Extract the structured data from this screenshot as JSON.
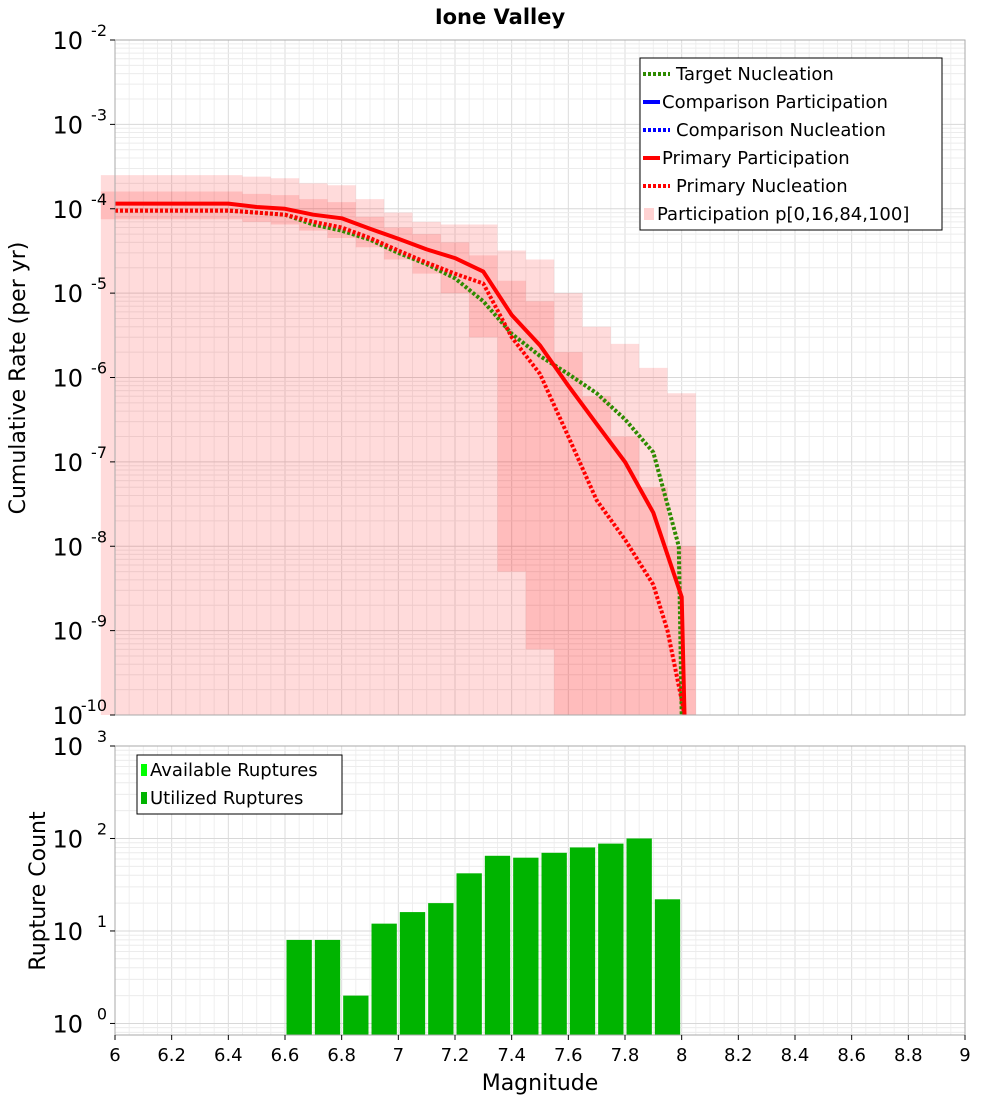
{
  "chart_data": [
    {
      "type": "line",
      "title": "Ione Valley",
      "ylabel": "Cumulative Rate (per yr)",
      "xlabel": "",
      "xlim": [
        6,
        9
      ],
      "ylim": [
        1e-10,
        0.01
      ],
      "yscale": "log",
      "ytick_exponents": [
        "-10",
        "-9",
        "-8",
        "-7",
        "-6",
        "-5",
        "-4",
        "-3",
        "-2"
      ],
      "ytick_base": "10",
      "legend_position": "top-right",
      "band": {
        "name": "Participation p[0,16,84,100]",
        "x": [
          6.0,
          6.1,
          6.2,
          6.3,
          6.4,
          6.5,
          6.6,
          6.7,
          6.8,
          6.9,
          7.0,
          7.1,
          7.2,
          7.3,
          7.4,
          7.5,
          7.6,
          7.7,
          7.8,
          7.9,
          8.0
        ],
        "p0": [
          1e-10,
          1e-10,
          1e-10,
          1e-10,
          1e-10,
          1e-10,
          1e-10,
          1e-10,
          1e-10,
          1e-10,
          1e-10,
          1e-10,
          1e-10,
          1e-10,
          1e-10,
          1e-10,
          1e-10,
          1e-10,
          1e-10,
          1e-10,
          1e-10
        ],
        "p16": [
          7.5e-05,
          7.5e-05,
          7.5e-05,
          7.5e-05,
          7.5e-05,
          7e-05,
          6.5e-05,
          5.5e-05,
          4.5e-05,
          3.5e-05,
          2.5e-05,
          1.7e-05,
          1e-05,
          3e-06,
          5e-09,
          6e-10,
          1e-10,
          1e-10,
          1e-10,
          1e-10,
          1e-10
        ],
        "p84": [
          0.00016,
          0.00016,
          0.00016,
          0.00016,
          0.00016,
          0.00015,
          0.000145,
          0.00013,
          0.00012,
          8e-05,
          6e-05,
          5e-05,
          4e-05,
          2.8e-05,
          1.4e-05,
          8e-06,
          2e-06,
          6e-07,
          2e-07,
          5e-08,
          1e-08
        ],
        "p100": [
          0.00025,
          0.00025,
          0.00025,
          0.00025,
          0.00025,
          0.00024,
          0.00023,
          0.0002,
          0.00019,
          0.00013,
          9e-05,
          7e-05,
          6.5e-05,
          6.5e-05,
          3.2e-05,
          2.5e-05,
          1e-05,
          4e-06,
          2.5e-06,
          1.3e-06,
          6.5e-07
        ],
        "color": "#ff0000"
      },
      "series": [
        {
          "name": "Target Nucleation",
          "style": "dotted",
          "color": "#2e8b00",
          "x": [
            6.0,
            6.1,
            6.2,
            6.3,
            6.4,
            6.5,
            6.6,
            6.7,
            6.8,
            6.9,
            7.0,
            7.1,
            7.2,
            7.3,
            7.4,
            7.5,
            7.6,
            7.7,
            7.8,
            7.9,
            7.99,
            8.0
          ],
          "y": [
            9.5e-05,
            9.5e-05,
            9.5e-05,
            9.5e-05,
            9.5e-05,
            9e-05,
            8.5e-05,
            6.5e-05,
            5.5e-05,
            4.3e-05,
            3e-05,
            2.2e-05,
            1.5e-05,
            8e-06,
            3.3e-06,
            1.8e-06,
            1.1e-06,
            6.5e-07,
            3.2e-07,
            1.3e-07,
            1e-08,
            1e-10
          ]
        },
        {
          "name": "Comparison Participation",
          "style": "solid",
          "color": "#0000ff",
          "x": [],
          "y": []
        },
        {
          "name": "Comparison Nucleation",
          "style": "dotted",
          "color": "#0000ff",
          "x": [],
          "y": []
        },
        {
          "name": "Primary Participation",
          "style": "solid",
          "color": "#ff0000",
          "x": [
            6.0,
            6.1,
            6.2,
            6.3,
            6.4,
            6.5,
            6.6,
            6.7,
            6.8,
            6.9,
            7.0,
            7.1,
            7.2,
            7.3,
            7.4,
            7.5,
            7.6,
            7.7,
            7.8,
            7.9,
            8.0,
            8.01
          ],
          "y": [
            0.000115,
            0.000115,
            0.000115,
            0.000115,
            0.000115,
            0.000105,
            0.0001,
            8.5e-05,
            7.7e-05,
            5.8e-05,
            4.4e-05,
            3.3e-05,
            2.6e-05,
            1.8e-05,
            5.5e-06,
            2.4e-06,
            8e-07,
            2.8e-07,
            1e-07,
            2.5e-08,
            2.5e-09,
            1e-10
          ]
        },
        {
          "name": "Primary Nucleation",
          "style": "dotted",
          "color": "#ff0000",
          "x": [
            6.0,
            6.1,
            6.2,
            6.3,
            6.4,
            6.5,
            6.6,
            6.7,
            6.8,
            6.9,
            7.0,
            7.1,
            7.2,
            7.3,
            7.4,
            7.5,
            7.6,
            7.7,
            7.8,
            7.9,
            7.95,
            8.0,
            8.01
          ],
          "y": [
            9.5e-05,
            9.5e-05,
            9.5e-05,
            9.5e-05,
            9.5e-05,
            9e-05,
            8.5e-05,
            7e-05,
            6e-05,
            4.5e-05,
            3.2e-05,
            2.3e-05,
            1.7e-05,
            1.3e-05,
            3e-06,
            1.1e-06,
            2e-07,
            3.5e-08,
            1.2e-08,
            3.5e-09,
            1e-09,
            1.5e-10,
            1e-10
          ]
        }
      ]
    },
    {
      "type": "bar",
      "title": "",
      "xlabel": "Magnitude",
      "ylabel": "Rupture Count",
      "xlim": [
        6,
        9
      ],
      "ylim": [
        0.75,
        1000
      ],
      "yscale": "log",
      "ytick_exponents": [
        "0",
        "1",
        "2",
        "3"
      ],
      "ytick_base": "10",
      "xticks": [
        "6",
        "6.2",
        "6.4",
        "6.6",
        "6.8",
        "7",
        "7.2",
        "7.4",
        "7.6",
        "7.8",
        "8",
        "8.2",
        "8.4",
        "8.6",
        "8.8",
        "9"
      ],
      "legend_position": "top-left",
      "bin_width": 0.1,
      "series": [
        {
          "name": "Available Ruptures",
          "color": "#00ff00",
          "centers": [],
          "values": []
        },
        {
          "name": "Utilized Ruptures",
          "color": "#00b400",
          "centers": [
            6.65,
            6.75,
            6.85,
            6.95,
            7.05,
            7.15,
            7.25,
            7.35,
            7.45,
            7.55,
            7.65,
            7.75,
            7.85,
            7.95
          ],
          "values": [
            8,
            8,
            2,
            12,
            16,
            20,
            42,
            65,
            62,
            70,
            80,
            88,
            100,
            22
          ]
        }
      ]
    }
  ]
}
